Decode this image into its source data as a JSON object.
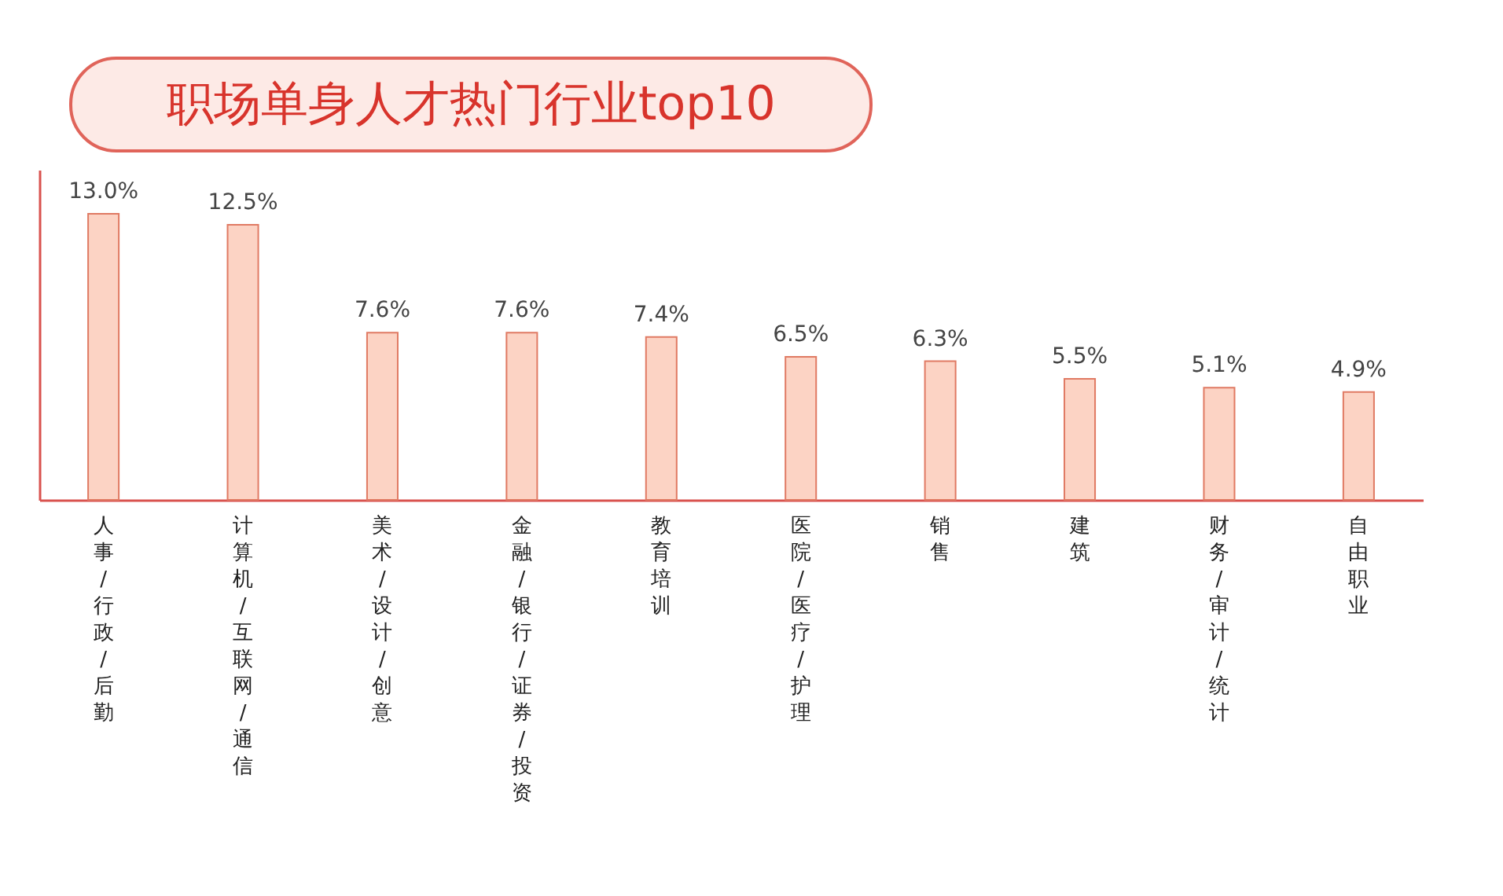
{
  "chart_data": {
    "type": "bar",
    "title": "职场单身人才热门行业top10",
    "categories": [
      "人事/行政/后勤",
      "计算机/互联网/通信",
      "美术/设计/创意",
      "金融/银行/证券/投资",
      "教育培训",
      "医院/医疗/护理",
      "销售",
      "建筑",
      "财务/审计/统计",
      "自由职业"
    ],
    "values": [
      13.0,
      12.5,
      7.6,
      7.6,
      7.4,
      6.5,
      6.3,
      5.5,
      5.1,
      4.9
    ],
    "value_labels": [
      "13.0%",
      "12.5%",
      "7.6%",
      "7.6%",
      "7.4%",
      "6.5%",
      "6.3%",
      "5.5%",
      "5.1%",
      "4.9%"
    ],
    "color": "#fcd3c4",
    "ylim": [
      0,
      15
    ],
    "tick_labels": "x",
    "grid": false
  }
}
